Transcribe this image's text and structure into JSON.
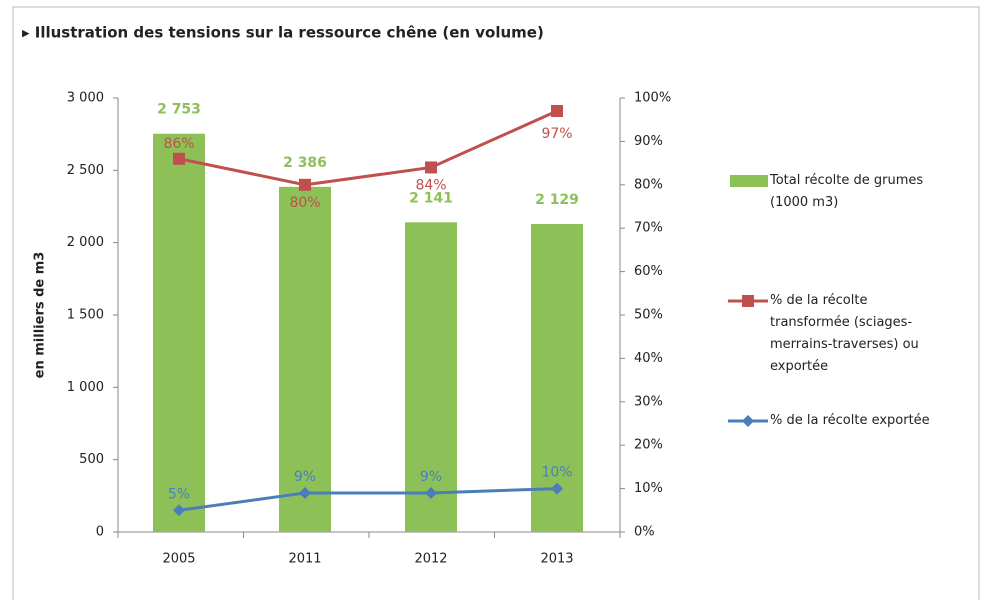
{
  "chart_data": {
    "type": "bar",
    "title": "▸ Illustration des tensions sur la ressource chêne (en volume)",
    "y_label": "en milliers de m3",
    "categories": [
      "2005",
      "2011",
      "2012",
      "2013"
    ],
    "series": [
      {
        "name": "Total récolte de grumes (1000 m3)",
        "type": "bar",
        "color": "#8dc158",
        "values": [
          2753,
          2386,
          2141,
          2129
        ],
        "value_labels": [
          "2 753",
          "2 386",
          "2 141",
          "2 129"
        ]
      },
      {
        "name": "% de la récolte transformée (sciages-merrains-traverses) ou exportée",
        "type": "line",
        "axis": "y2",
        "marker": "square",
        "color": "#c0504d",
        "values": [
          86,
          80,
          84,
          97
        ],
        "value_labels": [
          "86%",
          "80%",
          "84%",
          "97%"
        ]
      },
      {
        "name": "% de la récolte exportée",
        "type": "line",
        "axis": "y2",
        "marker": "diamond",
        "color": "#4a7ebb",
        "values": [
          5,
          9,
          9,
          10
        ],
        "value_labels": [
          "5%",
          "9%",
          "9%",
          "10%"
        ]
      }
    ],
    "ylim": [
      0,
      3000
    ],
    "yticks": [
      0,
      500,
      {
        "value": 1000,
        "label": "1 000"
      },
      {
        "value": 1500,
        "label": "1 500"
      },
      {
        "value": 2000,
        "label": "2 000"
      },
      {
        "value": 2500,
        "label": "2 500"
      },
      {
        "value": 3000,
        "label": "3 000"
      }
    ],
    "y2lim": [
      0,
      100
    ],
    "y2ticks": [
      {
        "value": 0,
        "label": "0%"
      },
      {
        "value": 10,
        "label": "10%"
      },
      {
        "value": 20,
        "label": "20%"
      },
      {
        "value": 30,
        "label": "30%"
      },
      {
        "value": 40,
        "label": "40%"
      },
      {
        "value": 50,
        "label": "50%"
      },
      {
        "value": 60,
        "label": "60%"
      },
      {
        "value": 70,
        "label": "70%"
      },
      {
        "value": 80,
        "label": "80%"
      },
      {
        "value": 90,
        "label": "90%"
      },
      {
        "value": 100,
        "label": "100%"
      }
    ],
    "legend": "right"
  }
}
